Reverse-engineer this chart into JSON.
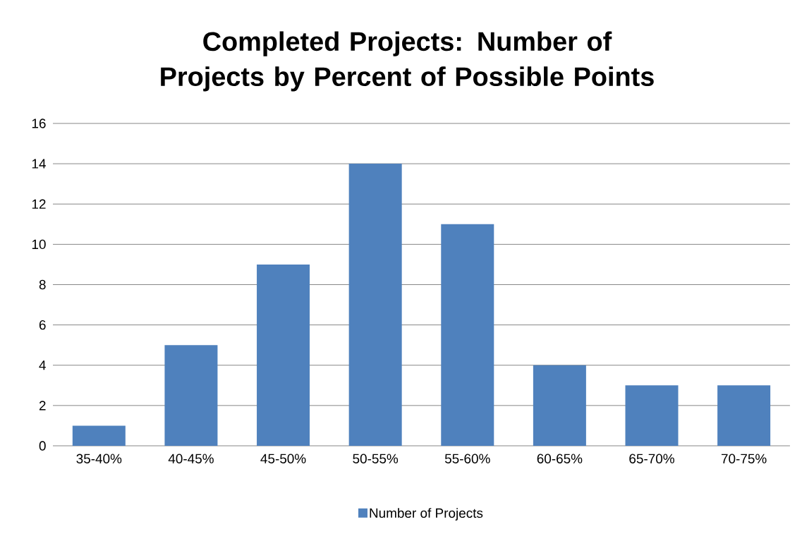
{
  "chart_data": {
    "type": "bar",
    "title": "Completed Projects: Number of Projects by Percent of Possible Points",
    "categories": [
      "35-40%",
      "40-45%",
      "45-50%",
      "50-55%",
      "55-60%",
      "60-65%",
      "65-70%",
      "70-75%"
    ],
    "series": [
      {
        "name": "Number of Projects",
        "color": "#4f81bd",
        "values": [
          1,
          5,
          9,
          14,
          11,
          4,
          3,
          3
        ]
      }
    ],
    "ylim": [
      0,
      16
    ],
    "yticks": [
      0,
      2,
      4,
      6,
      8,
      10,
      12,
      14,
      16
    ],
    "grid": "y",
    "legend": "bottom"
  }
}
